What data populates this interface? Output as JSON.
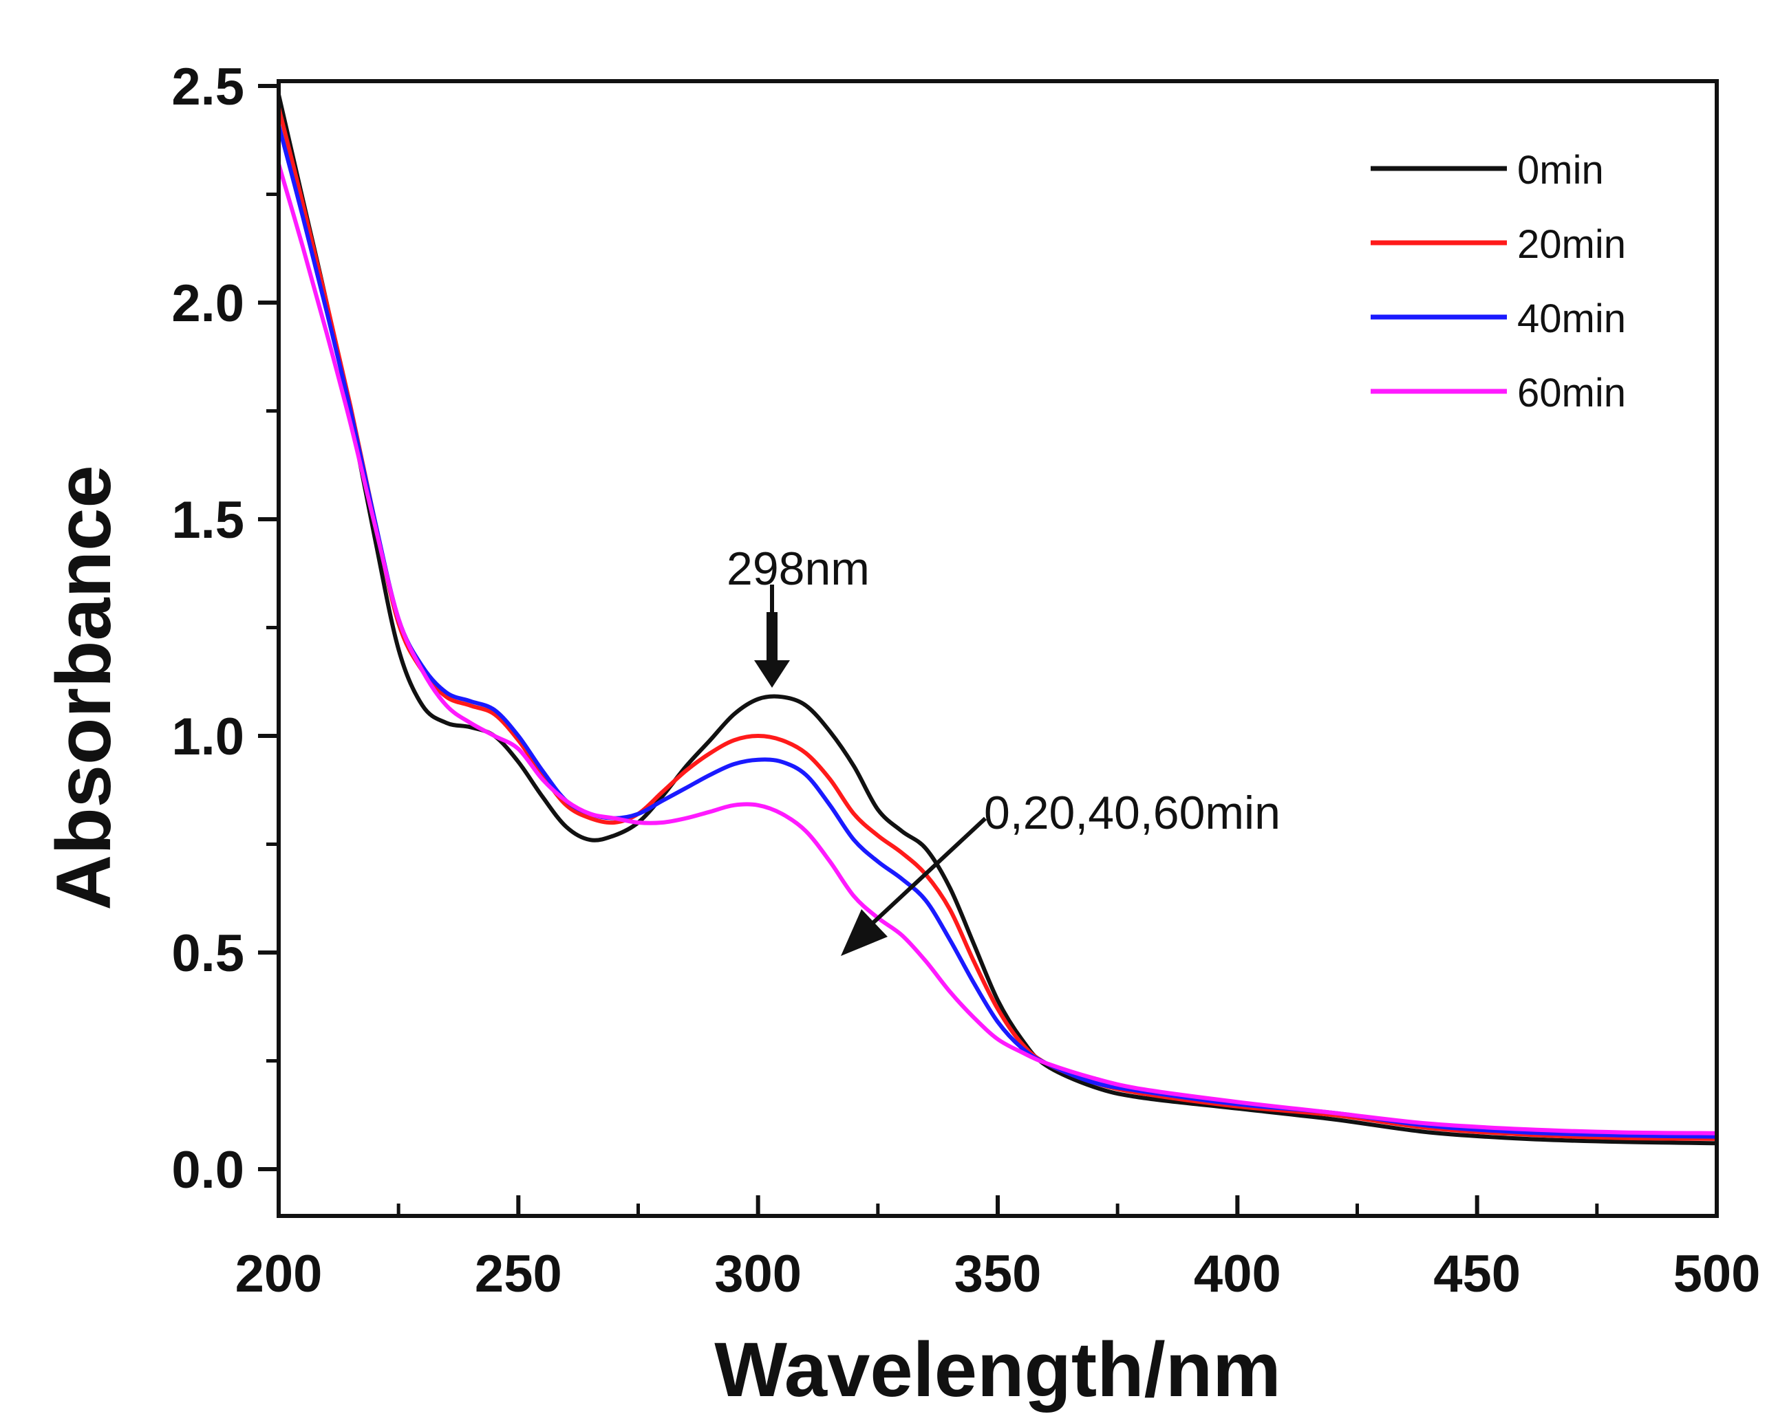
{
  "chart_data": {
    "type": "line",
    "title": "",
    "xlabel": "Wavelength/nm",
    "ylabel": "Absorbance",
    "xlim": [
      200,
      500
    ],
    "ylim": [
      0.0,
      2.5
    ],
    "x_ticks": [
      "200",
      "250",
      "300",
      "350",
      "400",
      "450",
      "500"
    ],
    "y_ticks": [
      "0.0",
      "0.5",
      "1.0",
      "1.5",
      "2.0",
      "2.5"
    ],
    "grid": false,
    "legend_position": "top-right",
    "series": [
      {
        "name": "0min",
        "color": "#111111",
        "points": [
          [
            200,
            2.48
          ],
          [
            205,
            2.24
          ],
          [
            210,
            2.0
          ],
          [
            215,
            1.74
          ],
          [
            220,
            1.46
          ],
          [
            225,
            1.2
          ],
          [
            230,
            1.07
          ],
          [
            235,
            1.03
          ],
          [
            240,
            1.02
          ],
          [
            245,
            1.0
          ],
          [
            250,
            0.94
          ],
          [
            255,
            0.86
          ],
          [
            260,
            0.79
          ],
          [
            265,
            0.76
          ],
          [
            270,
            0.77
          ],
          [
            275,
            0.8
          ],
          [
            280,
            0.86
          ],
          [
            285,
            0.93
          ],
          [
            290,
            0.99
          ],
          [
            295,
            1.05
          ],
          [
            300,
            1.085
          ],
          [
            305,
            1.09
          ],
          [
            310,
            1.07
          ],
          [
            315,
            1.01
          ],
          [
            320,
            0.93
          ],
          [
            325,
            0.83
          ],
          [
            330,
            0.78
          ],
          [
            335,
            0.74
          ],
          [
            340,
            0.65
          ],
          [
            345,
            0.52
          ],
          [
            350,
            0.39
          ],
          [
            355,
            0.3
          ],
          [
            360,
            0.24
          ],
          [
            370,
            0.19
          ],
          [
            380,
            0.165
          ],
          [
            400,
            0.14
          ],
          [
            420,
            0.115
          ],
          [
            440,
            0.085
          ],
          [
            460,
            0.07
          ],
          [
            480,
            0.063
          ],
          [
            500,
            0.06
          ]
        ]
      },
      {
        "name": "20min",
        "color": "#ff1a1a",
        "points": [
          [
            200,
            2.45
          ],
          [
            205,
            2.23
          ],
          [
            210,
            2.0
          ],
          [
            215,
            1.76
          ],
          [
            220,
            1.5
          ],
          [
            225,
            1.26
          ],
          [
            230,
            1.15
          ],
          [
            235,
            1.09
          ],
          [
            240,
            1.07
          ],
          [
            245,
            1.05
          ],
          [
            250,
            0.99
          ],
          [
            255,
            0.91
          ],
          [
            260,
            0.84
          ],
          [
            265,
            0.81
          ],
          [
            270,
            0.8
          ],
          [
            275,
            0.82
          ],
          [
            280,
            0.87
          ],
          [
            285,
            0.92
          ],
          [
            290,
            0.96
          ],
          [
            295,
            0.99
          ],
          [
            300,
            1.0
          ],
          [
            305,
            0.99
          ],
          [
            310,
            0.96
          ],
          [
            315,
            0.9
          ],
          [
            320,
            0.82
          ],
          [
            325,
            0.77
          ],
          [
            330,
            0.73
          ],
          [
            335,
            0.68
          ],
          [
            340,
            0.6
          ],
          [
            345,
            0.48
          ],
          [
            350,
            0.37
          ],
          [
            355,
            0.29
          ],
          [
            360,
            0.245
          ],
          [
            370,
            0.2
          ],
          [
            380,
            0.175
          ],
          [
            400,
            0.145
          ],
          [
            420,
            0.125
          ],
          [
            440,
            0.095
          ],
          [
            460,
            0.08
          ],
          [
            480,
            0.072
          ],
          [
            500,
            0.07
          ]
        ]
      },
      {
        "name": "40min",
        "color": "#1a1aff",
        "points": [
          [
            200,
            2.41
          ],
          [
            205,
            2.2
          ],
          [
            210,
            1.98
          ],
          [
            215,
            1.75
          ],
          [
            220,
            1.5
          ],
          [
            225,
            1.27
          ],
          [
            230,
            1.16
          ],
          [
            235,
            1.1
          ],
          [
            240,
            1.08
          ],
          [
            245,
            1.06
          ],
          [
            250,
            1.0
          ],
          [
            255,
            0.92
          ],
          [
            260,
            0.85
          ],
          [
            265,
            0.82
          ],
          [
            270,
            0.81
          ],
          [
            275,
            0.82
          ],
          [
            280,
            0.85
          ],
          [
            285,
            0.88
          ],
          [
            290,
            0.91
          ],
          [
            295,
            0.935
          ],
          [
            300,
            0.945
          ],
          [
            305,
            0.94
          ],
          [
            310,
            0.91
          ],
          [
            315,
            0.84
          ],
          [
            320,
            0.76
          ],
          [
            325,
            0.71
          ],
          [
            330,
            0.67
          ],
          [
            335,
            0.62
          ],
          [
            340,
            0.53
          ],
          [
            345,
            0.43
          ],
          [
            350,
            0.34
          ],
          [
            355,
            0.28
          ],
          [
            360,
            0.245
          ],
          [
            370,
            0.2
          ],
          [
            380,
            0.18
          ],
          [
            400,
            0.15
          ],
          [
            420,
            0.13
          ],
          [
            440,
            0.1
          ],
          [
            460,
            0.085
          ],
          [
            480,
            0.078
          ],
          [
            500,
            0.075
          ]
        ]
      },
      {
        "name": "60min",
        "color": "#ff1aff",
        "points": [
          [
            200,
            2.32
          ],
          [
            205,
            2.13
          ],
          [
            210,
            1.93
          ],
          [
            215,
            1.72
          ],
          [
            220,
            1.49
          ],
          [
            225,
            1.27
          ],
          [
            230,
            1.15
          ],
          [
            235,
            1.07
          ],
          [
            240,
            1.03
          ],
          [
            245,
            1.0
          ],
          [
            250,
            0.97
          ],
          [
            255,
            0.9
          ],
          [
            260,
            0.85
          ],
          [
            265,
            0.82
          ],
          [
            270,
            0.81
          ],
          [
            275,
            0.8
          ],
          [
            280,
            0.8
          ],
          [
            285,
            0.81
          ],
          [
            290,
            0.825
          ],
          [
            295,
            0.84
          ],
          [
            300,
            0.84
          ],
          [
            305,
            0.82
          ],
          [
            310,
            0.78
          ],
          [
            315,
            0.71
          ],
          [
            320,
            0.63
          ],
          [
            325,
            0.58
          ],
          [
            330,
            0.54
          ],
          [
            335,
            0.48
          ],
          [
            340,
            0.41
          ],
          [
            345,
            0.35
          ],
          [
            350,
            0.3
          ],
          [
            355,
            0.27
          ],
          [
            360,
            0.245
          ],
          [
            370,
            0.21
          ],
          [
            380,
            0.185
          ],
          [
            400,
            0.155
          ],
          [
            420,
            0.13
          ],
          [
            440,
            0.105
          ],
          [
            460,
            0.092
          ],
          [
            480,
            0.085
          ],
          [
            500,
            0.083
          ]
        ]
      }
    ],
    "annotations": [
      {
        "text": "298nm",
        "x": 302,
        "y": 1.12,
        "kind": "arrow-down"
      },
      {
        "text": "0,20,40,60min",
        "x": 318,
        "y": 0.5,
        "kind": "arrow-diagonal"
      }
    ]
  }
}
